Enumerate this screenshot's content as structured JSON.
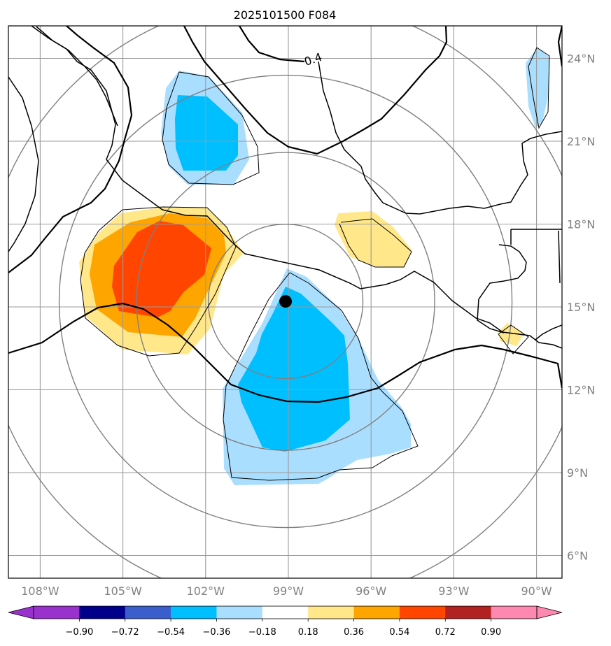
{
  "title": "2025101500 F084",
  "map": {
    "lon_range": [
      -109,
      -89.2
    ],
    "lat_range": [
      5.0,
      25.0
    ],
    "lon_ticks": [
      -108,
      -105,
      -102,
      -99,
      -96,
      -93,
      -90
    ],
    "lat_ticks": [
      6,
      9,
      12,
      15,
      18,
      21,
      24
    ],
    "lon_labels": [
      "108°W",
      "105°W",
      "102°W",
      "99°W",
      "96°W",
      "93°W",
      "90°W"
    ],
    "lat_labels": [
      "6°N",
      "9°N",
      "12°N",
      "15°N",
      "18°N",
      "21°N",
      "24°N"
    ],
    "grid": true,
    "center_marker": {
      "lon": -99.1,
      "lat": 15.2
    },
    "contour_label": "0.4",
    "range_rings": [
      {
        "radius_deg": 2.8
      },
      {
        "radius_deg": 5.4
      },
      {
        "radius_deg": 8.2
      },
      {
        "radius_deg": 11.0
      }
    ],
    "colors": {
      "lt_blue": "#aadeff",
      "blue": "#00bfff",
      "yellow": "#ffe78a",
      "orange": "#ffa500",
      "red_orange": "#ff4500"
    }
  },
  "colorbar": {
    "ticks": [
      "−0.90",
      "−0.72",
      "−0.54",
      "−0.36",
      "−0.18",
      "0.18",
      "0.36",
      "0.54",
      "0.72",
      "0.90"
    ],
    "colors": [
      "#9932cc",
      "#00008b",
      "#3a5fcd",
      "#00bfff",
      "#aadeff",
      "#ffffff",
      "#ffe78a",
      "#ffa500",
      "#ff4500",
      "#b22222",
      "#ff88b0",
      "#ff88b0"
    ]
  }
}
